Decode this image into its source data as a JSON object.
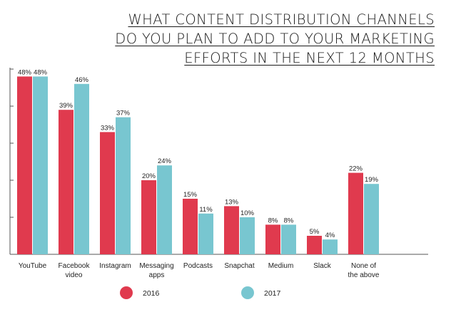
{
  "chart_data": {
    "type": "bar",
    "title_lines": [
      "WHAT CONTENT DISTRIBUTION CHANNELS",
      "DO YOU PLAN TO ADD TO YOUR MARKETING",
      "EFFORTS IN THE NEXT 12 MONTHS"
    ],
    "categories": [
      "YouTube",
      "Facebook\nvideo",
      "Instagram",
      "Messaging\napps",
      "Podcasts",
      "Snapchat",
      "Medium",
      "Slack",
      "None of\nthe above"
    ],
    "series": [
      {
        "name": "2016",
        "color": "#E03A4E",
        "values": [
          48,
          39,
          33,
          20,
          15,
          13,
          8,
          5,
          22
        ],
        "labels": [
          "48%",
          "39%",
          "33%",
          "20%",
          "15%",
          "13%",
          "8%",
          "5%",
          "22%"
        ]
      },
      {
        "name": "2017",
        "color": "#78C6D0",
        "values": [
          48,
          46,
          37,
          24,
          11,
          10,
          8,
          4,
          19
        ],
        "labels": [
          "48%",
          "46%",
          "37%",
          "24%",
          "11%",
          "10%",
          "8%",
          "4%",
          "19%"
        ]
      }
    ],
    "ylim": [
      0,
      50
    ],
    "grid": false,
    "legend_position": "bottom"
  }
}
